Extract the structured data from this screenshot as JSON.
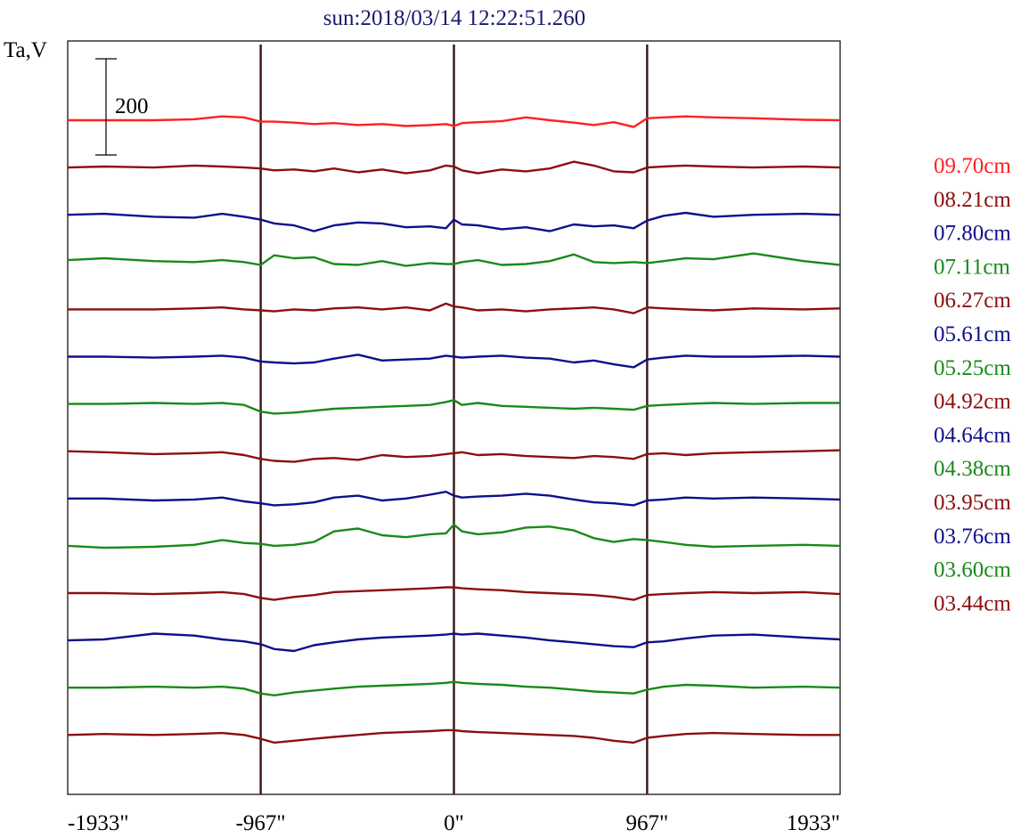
{
  "chart_data": {
    "type": "line",
    "title": "sun:2018/03/14 12:22:51.260",
    "ylabel": "Ta,V",
    "scale_bar": {
      "value": 200,
      "label": "200"
    },
    "x_range": [
      -1933,
      1933
    ],
    "x_ticks": [
      {
        "value": -1933,
        "label": "-1933\""
      },
      {
        "value": -967,
        "label": "-967\""
      },
      {
        "value": 0,
        "label": "0\""
      },
      {
        "value": 967,
        "label": "967\""
      },
      {
        "value": 1933,
        "label": "1933\""
      }
    ],
    "limb_markers": [
      -967,
      0,
      967
    ],
    "x": [
      -1933,
      -1750,
      -1500,
      -1300,
      -1160,
      -1050,
      -967,
      -900,
      -800,
      -700,
      -600,
      -480,
      -360,
      -240,
      -120,
      -40,
      0,
      40,
      120,
      240,
      360,
      480,
      600,
      700,
      800,
      900,
      967,
      1050,
      1160,
      1300,
      1500,
      1750,
      1933
    ],
    "series": [
      {
        "name": "09.70cm",
        "color": "#ff2020",
        "values": [
          0,
          0,
          0,
          2,
          8,
          6,
          -3,
          -3,
          -5,
          -8,
          -6,
          -10,
          -8,
          -12,
          -10,
          -8,
          -12,
          -6,
          -4,
          -2,
          6,
          0,
          -5,
          -10,
          -4,
          -14,
          4,
          6,
          8,
          6,
          4,
          1,
          0
        ]
      },
      {
        "name": "08.21cm",
        "color": "#8b0f0f",
        "values": [
          0,
          2,
          0,
          4,
          2,
          0,
          -2,
          -6,
          -4,
          -8,
          -2,
          -10,
          -4,
          -12,
          -6,
          4,
          2,
          -6,
          -12,
          -4,
          -8,
          -2,
          12,
          4,
          -8,
          -10,
          0,
          2,
          4,
          2,
          0,
          2,
          0
        ]
      },
      {
        "name": "07.80cm",
        "color": "#0f0f8b",
        "values": [
          0,
          2,
          -4,
          -6,
          2,
          -4,
          -10,
          -18,
          -22,
          -34,
          -22,
          -16,
          -18,
          -26,
          -24,
          -28,
          -10,
          -20,
          -22,
          -30,
          -26,
          -34,
          -20,
          -24,
          -22,
          -28,
          -12,
          -2,
          4,
          -4,
          0,
          2,
          0
        ]
      },
      {
        "name": "07.11cm",
        "color": "#1a8a1a",
        "values": [
          4,
          8,
          2,
          0,
          4,
          0,
          -6,
          14,
          8,
          10,
          -4,
          -6,
          2,
          -8,
          -2,
          -4,
          -4,
          0,
          4,
          -6,
          -4,
          2,
          16,
          0,
          -2,
          0,
          -2,
          2,
          8,
          6,
          18,
          2,
          -6
        ]
      },
      {
        "name": "06.27cm",
        "color": "#8b0f0f",
        "values": [
          0,
          0,
          0,
          2,
          4,
          0,
          -2,
          -4,
          0,
          -2,
          2,
          4,
          0,
          4,
          -2,
          12,
          6,
          4,
          -2,
          0,
          -4,
          0,
          2,
          4,
          0,
          -8,
          4,
          2,
          0,
          -2,
          2,
          0,
          2
        ]
      },
      {
        "name": "05.61cm",
        "color": "#0f0f8b",
        "values": [
          0,
          0,
          -2,
          0,
          2,
          -2,
          -10,
          -12,
          -14,
          -12,
          -4,
          4,
          -8,
          -6,
          -4,
          2,
          0,
          -2,
          0,
          2,
          -2,
          -4,
          -12,
          -8,
          -16,
          -22,
          -6,
          -2,
          2,
          0,
          0,
          2,
          0
        ]
      },
      {
        "name": "05.25cm",
        "color": "#1a8a1a",
        "values": [
          0,
          0,
          2,
          0,
          2,
          -2,
          -16,
          -20,
          -18,
          -14,
          -10,
          -8,
          -6,
          -4,
          -2,
          4,
          8,
          -2,
          2,
          -4,
          -6,
          -8,
          -10,
          -8,
          -10,
          -12,
          -4,
          -2,
          0,
          2,
          0,
          2,
          2
        ]
      },
      {
        "name": "04.92cm",
        "color": "#8b0f0f",
        "values": [
          0,
          -2,
          -6,
          -4,
          -2,
          -8,
          -16,
          -20,
          -22,
          -16,
          -14,
          -18,
          -8,
          -12,
          -10,
          -6,
          -4,
          -2,
          -8,
          -6,
          -10,
          -12,
          -14,
          -10,
          -12,
          -16,
          -6,
          -4,
          -8,
          -4,
          -2,
          0,
          2
        ]
      },
      {
        "name": "04.64cm",
        "color": "#0f0f8b",
        "values": [
          0,
          0,
          -4,
          -2,
          2,
          -6,
          -10,
          -14,
          -12,
          -8,
          2,
          6,
          -4,
          0,
          8,
          14,
          6,
          2,
          4,
          6,
          10,
          6,
          -2,
          -8,
          -10,
          -14,
          -4,
          -2,
          2,
          0,
          2,
          0,
          -2
        ]
      },
      {
        "name": "04.38cm",
        "color": "#1a8a1a",
        "values": [
          0,
          -4,
          -2,
          2,
          12,
          6,
          4,
          0,
          2,
          8,
          30,
          36,
          22,
          18,
          24,
          26,
          44,
          30,
          24,
          28,
          38,
          40,
          32,
          16,
          8,
          14,
          12,
          8,
          2,
          -2,
          0,
          2,
          0
        ]
      },
      {
        "name": "03.95cm",
        "color": "#8b0f0f",
        "values": [
          0,
          0,
          -2,
          0,
          2,
          -2,
          -10,
          -14,
          -8,
          -4,
          2,
          4,
          6,
          8,
          10,
          12,
          12,
          10,
          8,
          6,
          2,
          0,
          -2,
          -4,
          -8,
          -14,
          -4,
          -2,
          0,
          2,
          0,
          2,
          -2
        ]
      },
      {
        "name": "03.76cm",
        "color": "#0f0f8b",
        "values": [
          0,
          2,
          14,
          10,
          2,
          -2,
          -8,
          -18,
          -22,
          -10,
          -4,
          2,
          6,
          8,
          10,
          12,
          14,
          12,
          14,
          10,
          6,
          0,
          -4,
          -8,
          -12,
          -14,
          -4,
          -2,
          4,
          10,
          12,
          6,
          2
        ]
      },
      {
        "name": "03.60cm",
        "color": "#1a8a1a",
        "values": [
          0,
          0,
          2,
          0,
          2,
          -2,
          -12,
          -16,
          -10,
          -6,
          -2,
          2,
          4,
          6,
          8,
          10,
          12,
          10,
          8,
          6,
          2,
          0,
          -4,
          -8,
          -10,
          -12,
          -4,
          2,
          6,
          4,
          0,
          2,
          0
        ]
      },
      {
        "name": "03.44cm",
        "color": "#8b0f0f",
        "values": [
          0,
          2,
          0,
          2,
          4,
          0,
          -8,
          -16,
          -12,
          -8,
          -4,
          0,
          4,
          6,
          8,
          10,
          10,
          8,
          6,
          4,
          2,
          0,
          -2,
          -6,
          -12,
          -16,
          -6,
          -2,
          2,
          4,
          2,
          0,
          0
        ]
      }
    ]
  }
}
